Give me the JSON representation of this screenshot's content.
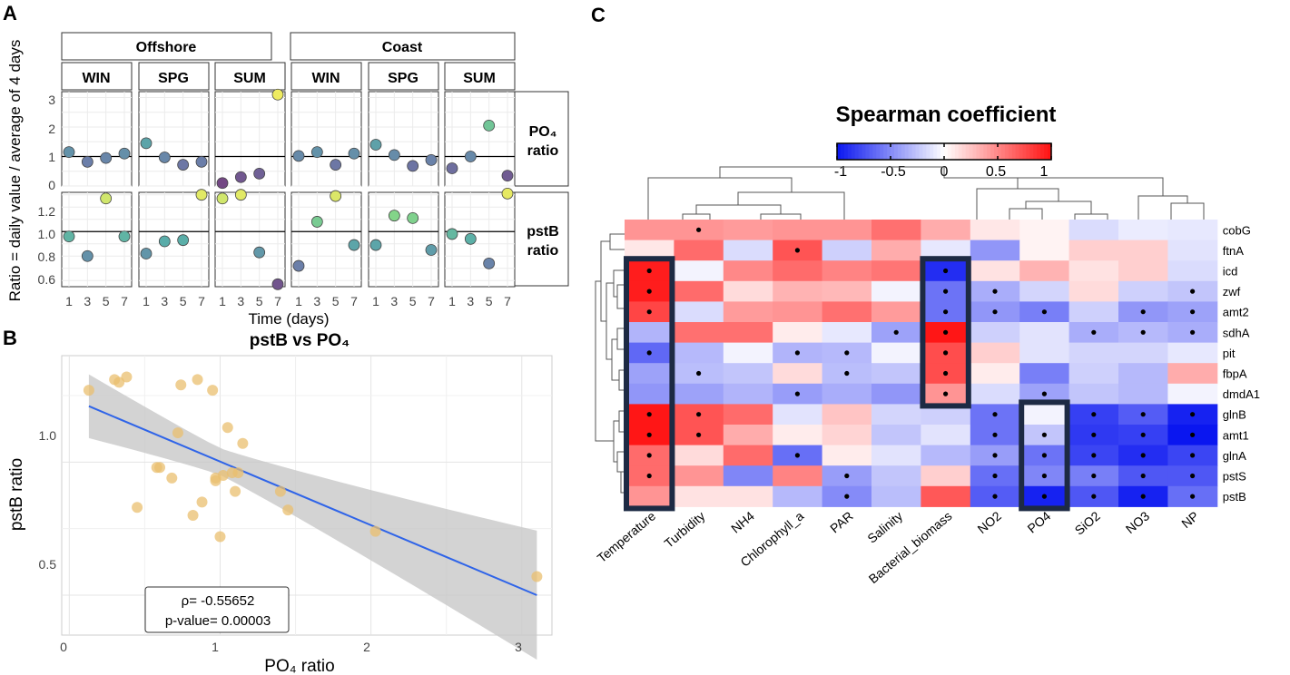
{
  "panels": {
    "a": "A",
    "b": "B",
    "c": "C"
  },
  "colors": {
    "line": "#2f64e8",
    "ribbon": "#c8c8c8",
    "point": "#e9bf6f",
    "low": "#0a16f0",
    "mid": "#ffffff",
    "high": "#ff1111",
    "box": "#1d2a44"
  },
  "panel_a": {
    "ylabel": "Ratio = daily value / average of 4 days",
    "xlabel": "Time (days)",
    "groups": [
      "Offshore",
      "Coast"
    ],
    "seasons": [
      "WIN",
      "SPG",
      "SUM"
    ],
    "rows": [
      {
        "label": "PO₄",
        "label2": "ratio",
        "ticks": [
          "0",
          "1",
          "2",
          "3"
        ]
      },
      {
        "label": "pstB",
        "label2": "ratio",
        "ticks": [
          "0.6",
          "0.8",
          "1.0",
          "1.2"
        ]
      }
    ],
    "xticks": [
      "1",
      "3",
      "5",
      "7"
    ]
  },
  "panel_b": {
    "title": "pstB vs PO₄",
    "xlabel": "PO₄ ratio",
    "ylabel": "pstB ratio",
    "xticks": [
      "0",
      "1",
      "2",
      "3"
    ],
    "yticks": [
      "0.5",
      "1.0"
    ],
    "stats": {
      "rho": "ρ= -0.55652",
      "p": "p-value= 0.00003"
    }
  },
  "panel_c": {
    "title": "Spearman coefficient",
    "legend_ticks": [
      "-1",
      "-0.5",
      "0",
      "0.5",
      "1"
    ],
    "columns": [
      "Temperature",
      "Turbidity",
      "NH4",
      "Chlorophyll_a",
      "PAR",
      "Salinity",
      "Bacterial_biomass",
      "NO2",
      "PO4",
      "SiO2",
      "NO3",
      "NP"
    ],
    "rows": [
      "cobG",
      "ftnA",
      "icd",
      "zwf",
      "amt2",
      "sdhA",
      "pit",
      "fbpA",
      "dmdA1",
      "glnB",
      "amt1",
      "glnA",
      "pstS",
      "pstB"
    ]
  },
  "chart_data": [
    {
      "type": "scatter",
      "title": "Ratio = daily value / average of 4 days",
      "xlabel": "Time (days)",
      "x": [
        1,
        3,
        5,
        7
      ],
      "facets_columns": [
        "Offshore WIN",
        "Offshore SPG",
        "Offshore SUM",
        "Coast WIN",
        "Coast SPG",
        "Coast SUM"
      ],
      "facets_rows": [
        "PO4 ratio",
        "pstB ratio"
      ],
      "ylim_rows": [
        [
          0,
          3.2
        ],
        [
          0.55,
          1.32
        ]
      ],
      "reference_line": 1,
      "series": [
        {
          "name": "PO4 ratio - Offshore WIN",
          "values": [
            1.15,
            0.82,
            0.95,
            1.1
          ]
        },
        {
          "name": "PO4 ratio - Offshore SPG",
          "values": [
            1.45,
            0.97,
            0.72,
            0.82
          ]
        },
        {
          "name": "PO4 ratio - Offshore SUM",
          "values": [
            0.1,
            0.3,
            0.42,
            3.1
          ]
        },
        {
          "name": "PO4 ratio - Coast WIN",
          "values": [
            1.02,
            1.15,
            0.72,
            1.1
          ]
        },
        {
          "name": "PO4 ratio - Coast SPG",
          "values": [
            1.4,
            1.05,
            0.68,
            0.88
          ]
        },
        {
          "name": "PO4 ratio - Coast SUM",
          "values": [
            0.6,
            1.0,
            2.05,
            0.35
          ]
        },
        {
          "name": "pstB ratio - Offshore WIN",
          "values": [
            0.96,
            0.8,
            1.27,
            0.96
          ]
        },
        {
          "name": "pstB ratio - Offshore SPG",
          "values": [
            0.82,
            0.92,
            0.93,
            1.3
          ]
        },
        {
          "name": "pstB ratio - Offshore SUM",
          "values": [
            1.27,
            1.3,
            0.83,
            0.57
          ]
        },
        {
          "name": "pstB ratio - Coast WIN",
          "values": [
            0.72,
            1.08,
            1.29,
            0.89
          ]
        },
        {
          "name": "pstB ratio - Coast SPG",
          "values": [
            0.89,
            1.13,
            1.11,
            0.85
          ]
        },
        {
          "name": "pstB ratio - Coast SUM",
          "values": [
            0.98,
            0.94,
            0.74,
            1.31
          ]
        }
      ]
    },
    {
      "type": "scatter",
      "title": "pstB vs PO₄",
      "xlabel": "PO₄ ratio",
      "ylabel": "pstB ratio",
      "xlim": [
        -0.05,
        3.2
      ],
      "ylim": [
        0.35,
        1.4
      ],
      "x": [
        0.13,
        0.33,
        0.38,
        0.6,
        0.74,
        0.85,
        0.95,
        0.3,
        0.68,
        0.97,
        1.05,
        1.15,
        0.72,
        0.58,
        0.45,
        0.97,
        1.1,
        1.0,
        1.4,
        0.88,
        0.82,
        1.02,
        1.45,
        2.03,
        3.1,
        1.08,
        1.12
      ],
      "y": [
        1.27,
        1.3,
        1.32,
        0.98,
        1.29,
        1.31,
        1.27,
        1.31,
        0.94,
        0.93,
        1.13,
        1.07,
        1.11,
        0.98,
        0.83,
        0.94,
        0.89,
        0.72,
        0.89,
        0.85,
        0.8,
        0.95,
        0.82,
        0.74,
        0.57,
        0.96,
        0.96
      ],
      "fit": {
        "x": [
          0.13,
          3.1
        ],
        "y": [
          1.21,
          0.5
        ]
      },
      "stats": {
        "rho": -0.55652,
        "p_value": 3e-05
      }
    },
    {
      "type": "heatmap",
      "title": "Spearman coefficient",
      "columns": [
        "Temperature",
        "Turbidity",
        "NH4",
        "Chlorophyll_a",
        "PAR",
        "Salinity",
        "Bacterial_biomass",
        "NO2",
        "PO4",
        "SiO2",
        "NO3",
        "NP"
      ],
      "rows": [
        "cobG",
        "ftnA",
        "icd",
        "zwf",
        "amt2",
        "sdhA",
        "pit",
        "fbpA",
        "dmdA1",
        "glnB",
        "amt1",
        "glnA",
        "pstS",
        "pstB"
      ],
      "scale": [
        -1,
        1
      ],
      "values": [
        [
          0.45,
          0.45,
          0.42,
          0.45,
          0.45,
          0.6,
          0.35,
          0.1,
          0.05,
          -0.15,
          -0.08,
          -0.1
        ],
        [
          0.1,
          0.62,
          -0.15,
          0.72,
          -0.2,
          0.35,
          -0.1,
          -0.45,
          0.05,
          0.2,
          0.2,
          -0.12
        ],
        [
          0.95,
          -0.05,
          0.5,
          0.62,
          0.52,
          0.58,
          -0.9,
          0.12,
          0.32,
          0.12,
          0.2,
          -0.15
        ],
        [
          0.95,
          0.62,
          0.15,
          0.32,
          0.3,
          -0.05,
          -0.6,
          -0.35,
          -0.18,
          0.15,
          -0.2,
          -0.25
        ],
        [
          0.78,
          -0.15,
          0.42,
          0.45,
          0.6,
          0.42,
          -0.6,
          -0.45,
          -0.55,
          -0.2,
          -0.45,
          -0.4
        ],
        [
          -0.32,
          0.6,
          0.6,
          0.08,
          -0.1,
          -0.4,
          0.98,
          -0.2,
          -0.12,
          -0.35,
          -0.3,
          -0.35
        ],
        [
          -0.65,
          -0.3,
          -0.05,
          -0.32,
          -0.3,
          -0.05,
          0.75,
          0.2,
          -0.12,
          -0.18,
          -0.18,
          -0.1
        ],
        [
          -0.4,
          -0.28,
          -0.25,
          0.15,
          -0.28,
          -0.25,
          0.75,
          0.08,
          -0.55,
          -0.2,
          -0.3,
          0.35
        ],
        [
          -0.45,
          -0.4,
          -0.32,
          -0.42,
          -0.35,
          -0.45,
          0.45,
          -0.15,
          -0.4,
          -0.25,
          -0.3,
          -0.05
        ],
        [
          0.98,
          0.72,
          0.62,
          -0.12,
          0.25,
          -0.18,
          -0.2,
          -0.6,
          -0.05,
          -0.82,
          -0.7,
          -0.95
        ],
        [
          0.98,
          0.72,
          0.35,
          0.08,
          0.18,
          -0.25,
          -0.12,
          -0.6,
          -0.25,
          -0.85,
          -0.82,
          -1.0
        ],
        [
          0.62,
          0.15,
          0.62,
          -0.62,
          0.08,
          -0.12,
          -0.3,
          -0.42,
          -0.6,
          -0.8,
          -0.9,
          -0.8
        ],
        [
          0.62,
          0.45,
          -0.52,
          0.52,
          -0.42,
          -0.25,
          0.2,
          -0.62,
          -0.52,
          -0.55,
          -0.72,
          -0.72
        ],
        [
          0.45,
          0.12,
          0.12,
          -0.3,
          -0.5,
          -0.28,
          0.7,
          -0.7,
          -0.95,
          -0.72,
          -0.95,
          -0.62
        ]
      ],
      "significant": [
        [
          0,
          1,
          0,
          0,
          0,
          0,
          0,
          0,
          0,
          0,
          0,
          0
        ],
        [
          0,
          0,
          0,
          1,
          0,
          0,
          0,
          0,
          0,
          0,
          0,
          0
        ],
        [
          1,
          0,
          0,
          0,
          0,
          0,
          1,
          0,
          0,
          0,
          0,
          0
        ],
        [
          1,
          0,
          0,
          0,
          0,
          0,
          1,
          1,
          0,
          0,
          0,
          1
        ],
        [
          1,
          0,
          0,
          0,
          0,
          0,
          1,
          1,
          1,
          0,
          1,
          1
        ],
        [
          0,
          0,
          0,
          0,
          0,
          1,
          1,
          0,
          0,
          1,
          1,
          1
        ],
        [
          1,
          0,
          0,
          1,
          1,
          0,
          1,
          0,
          0,
          0,
          0,
          0
        ],
        [
          0,
          1,
          0,
          0,
          1,
          0,
          1,
          0,
          0,
          0,
          0,
          0
        ],
        [
          0,
          0,
          0,
          1,
          0,
          0,
          1,
          0,
          1,
          0,
          0,
          0
        ],
        [
          1,
          1,
          0,
          0,
          0,
          0,
          0,
          1,
          0,
          1,
          1,
          1
        ],
        [
          1,
          1,
          0,
          0,
          0,
          0,
          0,
          1,
          1,
          1,
          1,
          1
        ],
        [
          1,
          0,
          0,
          1,
          0,
          0,
          0,
          1,
          1,
          1,
          1,
          1
        ],
        [
          1,
          0,
          0,
          0,
          1,
          0,
          0,
          1,
          1,
          1,
          1,
          1
        ],
        [
          0,
          0,
          0,
          0,
          1,
          0,
          0,
          1,
          1,
          1,
          1,
          1
        ]
      ],
      "highlight_boxes": [
        {
          "columns": [
            "Temperature"
          ],
          "rows": [
            "icd",
            "pstB"
          ]
        },
        {
          "columns": [
            "Bacterial_biomass"
          ],
          "rows": [
            "icd",
            "dmdA1"
          ]
        },
        {
          "columns": [
            "PO4"
          ],
          "rows": [
            "glnB",
            "pstB"
          ]
        }
      ]
    }
  ]
}
